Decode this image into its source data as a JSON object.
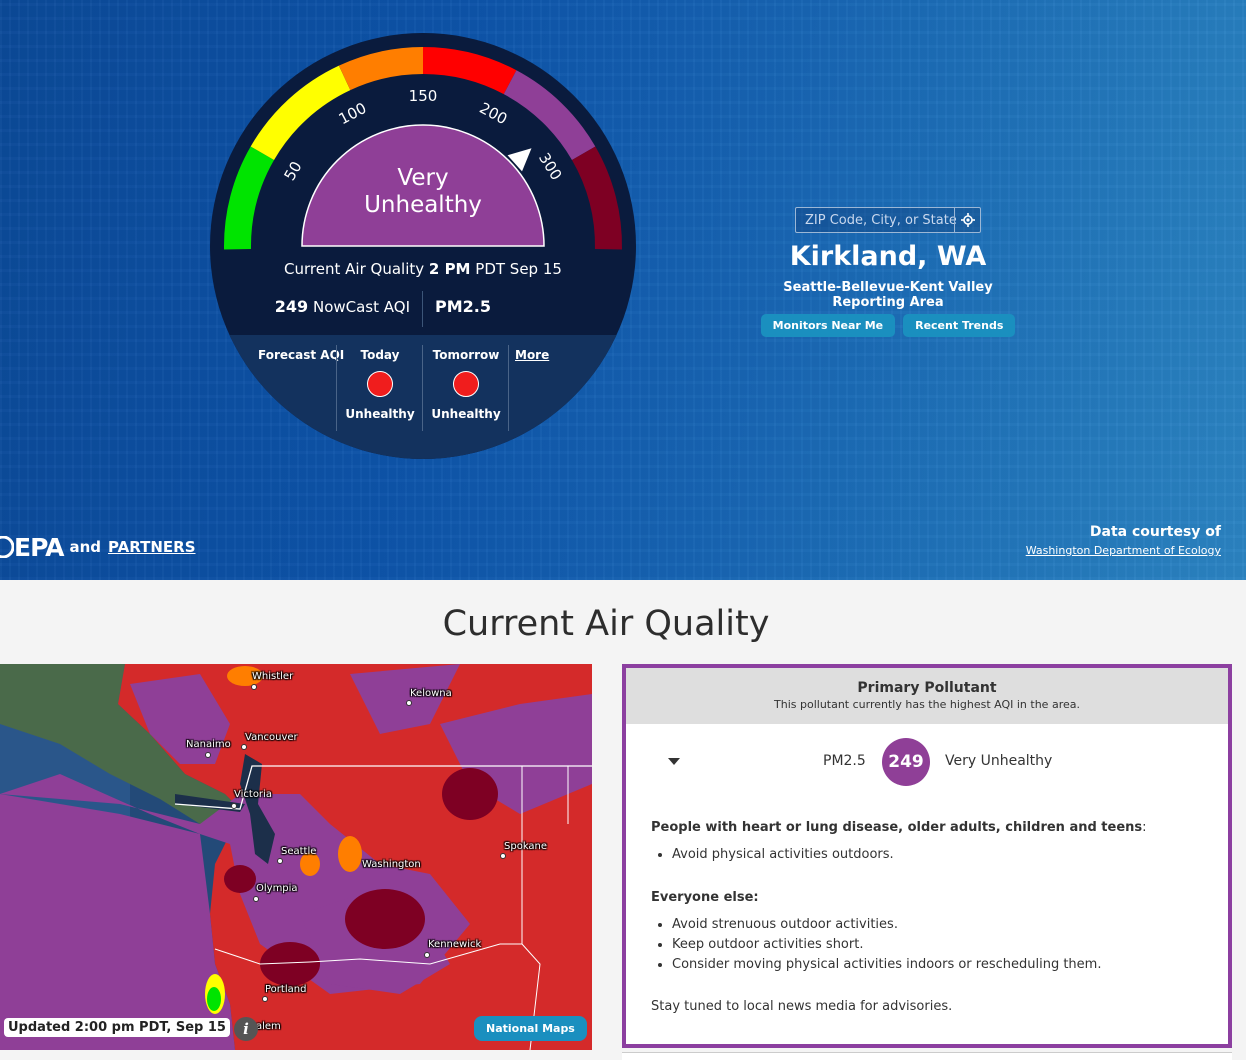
{
  "dial": {
    "ticks": [
      "50",
      "100",
      "150",
      "200",
      "300"
    ],
    "category_line1": "Very",
    "category_line2": "Unhealthy",
    "current_prefix": "Current Air Quality",
    "current_time": "2 PM",
    "current_suffix": "PDT Sep 15",
    "aqi_value": "249",
    "aqi_label": "NowCast AQI",
    "pollutant": "PM2.5",
    "needle_aqi": 249,
    "band_colors": [
      "#00e400",
      "#ffff00",
      "#ff7e00",
      "#ff0000",
      "#8f3f97",
      "#7e0023"
    ],
    "category_color": "#8f3f97"
  },
  "forecast": {
    "label": "Forecast AQI",
    "today_label": "Today",
    "today_level": "Unhealthy",
    "tomorrow_label": "Tomorrow",
    "tomorrow_level": "Unhealthy",
    "more_label": "More",
    "dot_color": "#f01d1d"
  },
  "location": {
    "search_placeholder": "ZIP Code, City, or State",
    "city": "Kirkland, WA",
    "reporting_area": "Seattle-Bellevue-Kent Valley Reporting Area",
    "monitors_btn": "Monitors Near Me",
    "trends_btn": "Recent Trends"
  },
  "footer": {
    "epa_logo": "EPA",
    "and": "and",
    "partners": "PARTNERS",
    "courtesy_title": "Data courtesy of",
    "courtesy_link": "Washington Department of Ecology"
  },
  "section_title": "Current Air Quality",
  "map": {
    "cities": [
      "Whistler",
      "Kelowna",
      "Nanaimo",
      "Vancouver",
      "Victoria",
      "Seattle",
      "Washington",
      "Spokane",
      "Olympia",
      "Kennewick",
      "Portland",
      "alem"
    ],
    "updated": "Updated 2:00 pm PDT, Sep 15",
    "info_icon": "i",
    "national_maps": "National Maps"
  },
  "pollutant": {
    "title": "Primary Pollutant",
    "subtitle": "This pollutant currently has the highest AQI in the area.",
    "name": "PM2.5",
    "aqi": "249",
    "level": "Very Unhealthy",
    "sensitive_heading": "People with heart or lung disease, older adults, children and teens",
    "sensitive_heading_suffix": ":",
    "sensitive_items": [
      "Avoid physical activities outdoors."
    ],
    "everyone_heading": "Everyone else:",
    "everyone_items": [
      "Avoid strenuous outdoor activities.",
      "Keep outdoor activities short.",
      "Consider moving physical activities indoors or rescheduling them."
    ],
    "advisory": "Stay tuned to local news media for advisories."
  }
}
